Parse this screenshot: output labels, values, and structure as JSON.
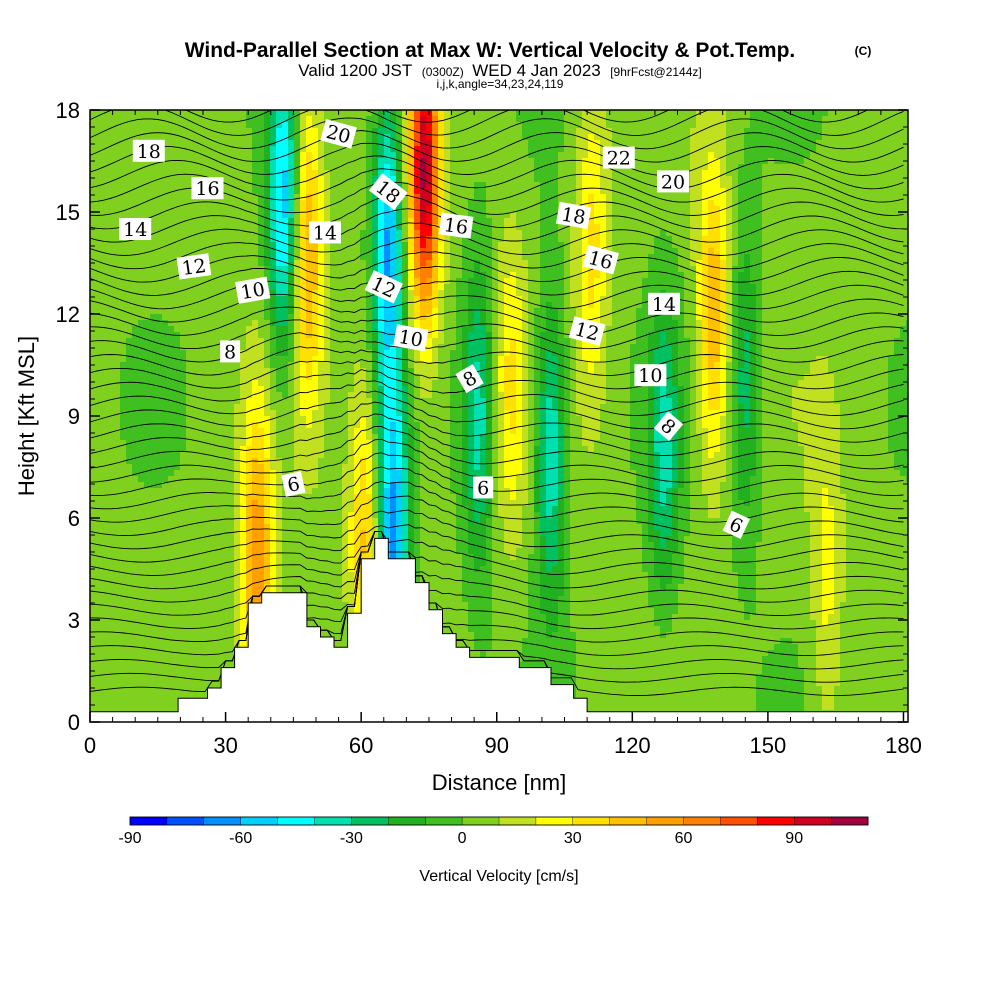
{
  "header": {
    "title": "Wind-Parallel Section at Max W: Vertical Velocity & Pot.Temp.",
    "copyright": "(C)",
    "valid_prefix": "Valid 1200 JST",
    "valid_utc": "(0300Z)",
    "valid_date": "WED 4 Jan 2023",
    "forecast_tag": "[9hrFcst@2144z]",
    "grid_info": "i,j,k,angle=34,23,24,119"
  },
  "colors": {
    "terrain": "#ffffff",
    "contour_line": "#000000",
    "palette": [
      "#0000ff",
      "#0050ff",
      "#0090ff",
      "#00d0ff",
      "#00ffff",
      "#00e0b0",
      "#00c060",
      "#20b020",
      "#40c020",
      "#80d020",
      "#c0e020",
      "#ffff00",
      "#ffe000",
      "#ffc000",
      "#ffa000",
      "#ff8000",
      "#ff5000",
      "#ff0000",
      "#d00020",
      "#a00040",
      "#700080",
      "#400090"
    ]
  },
  "colorbar": {
    "ticks": [
      "-90",
      "-60",
      "-30",
      "0",
      "30",
      "60",
      "90"
    ],
    "title": "Vertical Velocity [cm/s]"
  },
  "chart_data": {
    "type": "heatmap",
    "title": "Wind-Parallel Section at Max W: Vertical Velocity & Pot.Temp.",
    "xlabel": "Distance [nm]",
    "ylabel": "Height [Kft MSL]",
    "xlim": [
      0,
      181
    ],
    "ylim": [
      0,
      18
    ],
    "x_ticks": [
      "0",
      "30",
      "60",
      "90",
      "120",
      "150",
      "180"
    ],
    "y_ticks": [
      "0",
      "3",
      "6",
      "9",
      "12",
      "15",
      "18"
    ],
    "fill_variable": "Vertical Velocity",
    "fill_units": "cm/s",
    "fill_levels": [
      -90,
      -80,
      -70,
      -60,
      -50,
      -40,
      -30,
      -20,
      -10,
      0,
      10,
      20,
      30,
      40,
      50,
      60,
      70,
      80,
      90,
      100,
      110
    ],
    "contour_variable": "Pot.Temp.",
    "terrain_profile": {
      "x": [
        0,
        19.5,
        19.5,
        26,
        26,
        29,
        29,
        32,
        32,
        35,
        35,
        38,
        38,
        48,
        48,
        51,
        51,
        54,
        54,
        57,
        57,
        60,
        60,
        63,
        63,
        66,
        66,
        72,
        72,
        75,
        75,
        78,
        78,
        81,
        81,
        84,
        84,
        90,
        90,
        95,
        95,
        102,
        102,
        107,
        107,
        110,
        110,
        117,
        117,
        181
      ],
      "height": [
        0.3,
        0.3,
        0.7,
        0.7,
        1.0,
        1.0,
        1.6,
        1.6,
        2.2,
        2.2,
        3.5,
        3.5,
        3.8,
        3.8,
        2.8,
        2.8,
        2.5,
        2.5,
        2.2,
        2.2,
        3.2,
        3.2,
        4.8,
        4.8,
        5.4,
        5.4,
        4.8,
        4.8,
        4.1,
        4.1,
        3.3,
        3.3,
        2.6,
        2.6,
        2.2,
        2.2,
        1.9,
        1.9,
        1.9,
        1.9,
        1.6,
        1.6,
        1.1,
        1.1,
        0.7,
        0.7,
        0.3,
        0.3,
        0.3,
        0.3
      ]
    },
    "updraft_cores": [
      {
        "x": 37,
        "z": 4.5,
        "w": 55
      },
      {
        "x": 48,
        "z": 14,
        "w": 50
      },
      {
        "x": 61,
        "z": 5.5,
        "w": 40
      },
      {
        "x": 74,
        "z": 16,
        "w": 95
      },
      {
        "x": 93,
        "z": 10,
        "w": 25
      },
      {
        "x": 111,
        "z": 14,
        "w": 30
      },
      {
        "x": 138,
        "z": 12,
        "w": 45
      },
      {
        "x": 163,
        "z": 4,
        "w": 20
      }
    ],
    "downdraft_cores": [
      {
        "x": 43,
        "z": 15,
        "w": -60
      },
      {
        "x": 67,
        "z": 5,
        "w": -70
      },
      {
        "x": 66,
        "z": 14,
        "w": -65
      },
      {
        "x": 86,
        "z": 9,
        "w": -40
      },
      {
        "x": 102,
        "z": 8,
        "w": -45
      },
      {
        "x": 127,
        "z": 8,
        "w": -35
      },
      {
        "x": 145,
        "z": 10,
        "w": -30
      }
    ],
    "contour_labels": [
      {
        "text": "18",
        "x": 13,
        "z": 16.8,
        "angle": 0
      },
      {
        "text": "16",
        "x": 26,
        "z": 15.7,
        "angle": 0
      },
      {
        "text": "14",
        "x": 10,
        "z": 14.5,
        "angle": 0
      },
      {
        "text": "12",
        "x": 23,
        "z": 13.4,
        "angle": -8
      },
      {
        "text": "10",
        "x": 36,
        "z": 12.7,
        "angle": -10
      },
      {
        "text": "8",
        "x": 31,
        "z": 10.9,
        "angle": 0
      },
      {
        "text": "6",
        "x": 45,
        "z": 7.0,
        "angle": -12
      },
      {
        "text": "20",
        "x": 55,
        "z": 17.3,
        "angle": 15
      },
      {
        "text": "14",
        "x": 52,
        "z": 14.4,
        "angle": 0
      },
      {
        "text": "18",
        "x": 66,
        "z": 15.6,
        "angle": 38
      },
      {
        "text": "12",
        "x": 65,
        "z": 12.8,
        "angle": 25
      },
      {
        "text": "16",
        "x": 81,
        "z": 14.6,
        "angle": 8
      },
      {
        "text": "10",
        "x": 71,
        "z": 11.3,
        "angle": 10
      },
      {
        "text": "8",
        "x": 84,
        "z": 10.1,
        "angle": -30
      },
      {
        "text": "6",
        "x": 87,
        "z": 6.9,
        "angle": 0
      },
      {
        "text": "22",
        "x": 117,
        "z": 16.6,
        "angle": 0
      },
      {
        "text": "20",
        "x": 129,
        "z": 15.9,
        "angle": 0
      },
      {
        "text": "18",
        "x": 107,
        "z": 14.9,
        "angle": 10
      },
      {
        "text": "16",
        "x": 113,
        "z": 13.6,
        "angle": 15
      },
      {
        "text": "14",
        "x": 127,
        "z": 12.3,
        "angle": 0
      },
      {
        "text": "12",
        "x": 110,
        "z": 11.5,
        "angle": 15
      },
      {
        "text": "10",
        "x": 124,
        "z": 10.2,
        "angle": 0
      },
      {
        "text": "8",
        "x": 128,
        "z": 8.7,
        "angle": 40
      },
      {
        "text": "6",
        "x": 143,
        "z": 5.8,
        "angle": 25
      }
    ]
  }
}
